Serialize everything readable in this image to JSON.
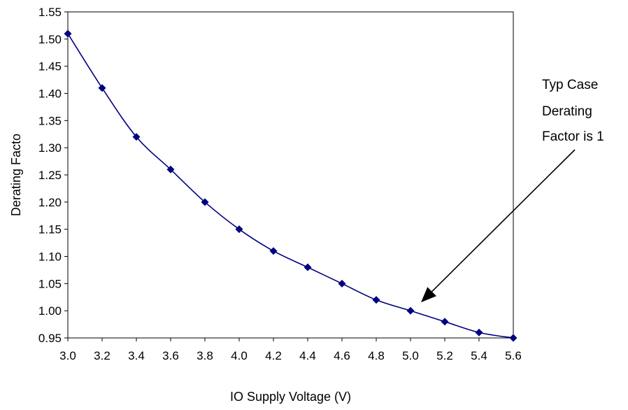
{
  "chart_data": {
    "type": "line",
    "xlabel": "IO Supply Voltage (V)",
    "ylabel": "Derating Facto",
    "x": [
      3.0,
      3.2,
      3.4,
      3.6,
      3.8,
      4.0,
      4.2,
      4.4,
      4.6,
      4.8,
      5.0,
      5.2,
      5.4,
      5.6
    ],
    "x_tick_labels": [
      "3.0",
      "3.2",
      "3.4",
      "3.6",
      "3.8",
      "4.0",
      "4.2",
      "4.4",
      "4.6",
      "4.8",
      "5.0",
      "5.2",
      "5.4",
      "5.6"
    ],
    "series": [
      {
        "values": [
          1.51,
          1.41,
          1.32,
          1.26,
          1.2,
          1.15,
          1.11,
          1.08,
          1.05,
          1.02,
          1.0,
          0.98,
          0.96,
          0.95
        ]
      }
    ],
    "xlim": [
      3.0,
      5.6
    ],
    "ylim": [
      0.95,
      1.55
    ],
    "y_tick_labels": [
      "0.95",
      "1.00",
      "1.05",
      "1.10",
      "1.15",
      "1.20",
      "1.25",
      "1.30",
      "1.35",
      "1.40",
      "1.45",
      "1.50",
      "1.55"
    ],
    "grid": false,
    "marker": "diamond",
    "line_color": "#000080",
    "marker_color": "#000080",
    "annotation": {
      "lines": [
        "Typ Case",
        "Derating",
        "Factor is 1"
      ],
      "points_to": {
        "x": 5.0,
        "y": 1.0
      }
    }
  }
}
